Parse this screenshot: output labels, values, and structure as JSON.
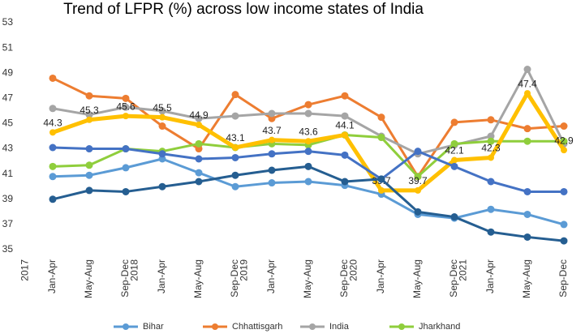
{
  "chart_data": {
    "type": "line",
    "title": "Trend of LFPR (%) across low income states of India",
    "years": [
      "2017",
      "2018",
      "2019",
      "2020",
      "2021"
    ],
    "categories": [
      "Jan-Apr",
      "May-Aug",
      "Sep-Dec",
      "Jan-Apr",
      "May-Aug",
      "Sep-Dec",
      "Jan-Apr",
      "May-Aug",
      "Sep-Dec",
      "Jan-Apr",
      "May-Aug",
      "Sep-Dec",
      "Jan-Apr",
      "May-Aug",
      "Sep-Dec"
    ],
    "ylim": [
      35,
      53
    ],
    "yticks": [
      35,
      37,
      39,
      41,
      43,
      45,
      47,
      49,
      51,
      53
    ],
    "grid": false,
    "legend": "bottom",
    "series": [
      {
        "name": "Bihar",
        "color": "#5b9bd5",
        "values": [
          40.8,
          40.9,
          41.5,
          42.2,
          41.1,
          40.0,
          40.3,
          40.4,
          40.1,
          39.4,
          37.8,
          37.5,
          38.2,
          37.8,
          37.0
        ]
      },
      {
        "name": "Chhattisgarh",
        "color": "#ed7d31",
        "values": [
          48.6,
          47.2,
          47.0,
          44.8,
          43.0,
          47.3,
          45.4,
          46.5,
          47.2,
          45.5,
          40.8,
          45.1,
          45.3,
          44.6,
          44.8
        ]
      },
      {
        "name": "India",
        "color": "#a5a5a5",
        "values": [
          46.2,
          45.7,
          46.3,
          46.0,
          45.4,
          45.6,
          45.8,
          45.8,
          45.6,
          44.0,
          42.6,
          43.3,
          44.0,
          49.3,
          43.4
        ]
      },
      {
        "name": "Jharkhand",
        "color": "#8fce3c",
        "values": [
          41.6,
          41.7,
          43.0,
          42.8,
          43.4,
          43.1,
          43.4,
          43.3,
          44.1,
          43.9,
          40.8,
          43.4,
          43.6,
          43.6,
          43.6
        ]
      },
      {
        "color": "#ffc000",
        "labels": true,
        "values": [
          44.3,
          45.3,
          45.6,
          45.5,
          44.9,
          43.1,
          43.7,
          43.6,
          44.1,
          39.7,
          39.7,
          42.1,
          42.3,
          47.4,
          42.9
        ]
      },
      {
        "color": "#4472c4",
        "values": [
          43.1,
          43.0,
          43.0,
          42.6,
          42.2,
          42.3,
          42.6,
          42.8,
          42.5,
          40.6,
          42.8,
          41.6,
          40.4,
          39.6,
          39.6
        ]
      },
      {
        "color": "#255e91",
        "values": [
          39.0,
          39.7,
          39.6,
          40.0,
          40.4,
          40.9,
          41.3,
          41.6,
          40.4,
          40.6,
          38.0,
          37.6,
          36.4,
          36.0,
          35.7
        ]
      }
    ]
  }
}
